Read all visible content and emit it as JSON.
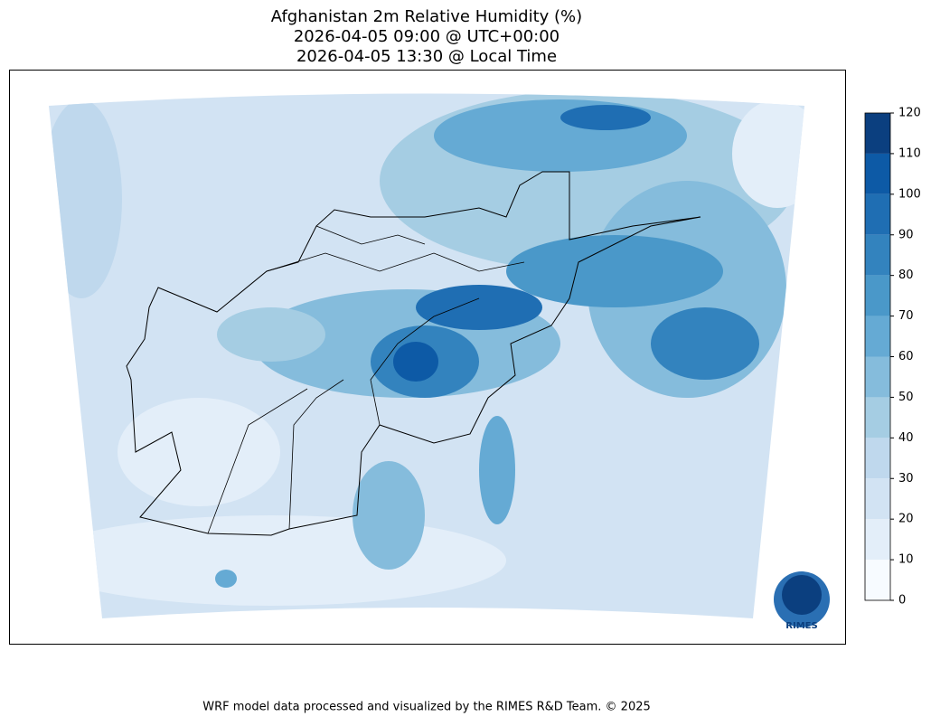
{
  "title": [
    "Afghanistan 2m Relative Humidity (%)",
    "2026-04-05 09:00 @ UTC+00:00",
    "2026-04-05 13:30 @ Local Time"
  ],
  "colorbar": {
    "lim": [
      0,
      120
    ],
    "ticks": [
      0,
      10,
      20,
      30,
      40,
      50,
      60,
      70,
      80,
      90,
      100,
      110,
      120
    ],
    "colors": [
      "#f7fbff",
      "#e3eef9",
      "#d2e3f3",
      "#bfd8ed",
      "#a5cde3",
      "#85bcdc",
      "#65aad4",
      "#4a98c9",
      "#3383be",
      "#1f6eb3",
      "#0d5aa6",
      "#0b3f7f"
    ]
  },
  "logo": "RIMES",
  "footer": "WRF model data processed and visualized by the RIMES R&D Team. © 2025"
}
